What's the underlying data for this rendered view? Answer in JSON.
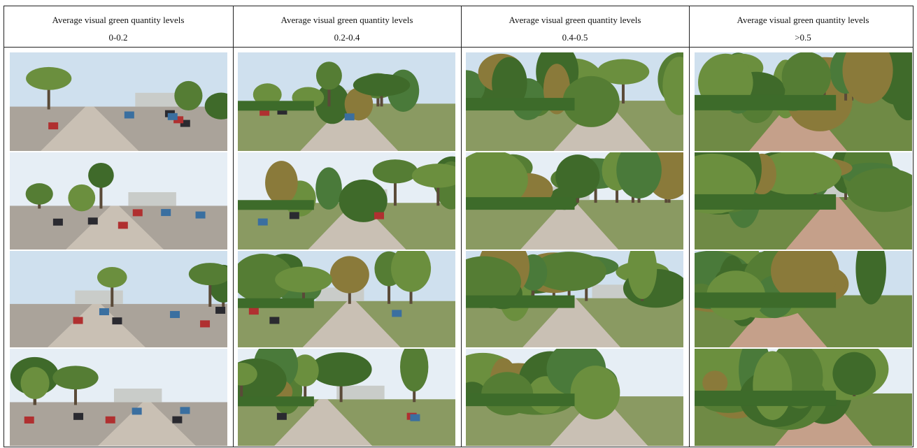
{
  "table": {
    "columns": [
      {
        "title": "Average visual green quantity levels",
        "range": "0-0.2"
      },
      {
        "title": "Average visual green quantity levels",
        "range": "0.2-0.4"
      },
      {
        "title": "Average visual green quantity levels",
        "range": "0.4-0.5"
      },
      {
        "title": "Average visual green quantity levels",
        "range": ">0.5"
      }
    ]
  }
}
